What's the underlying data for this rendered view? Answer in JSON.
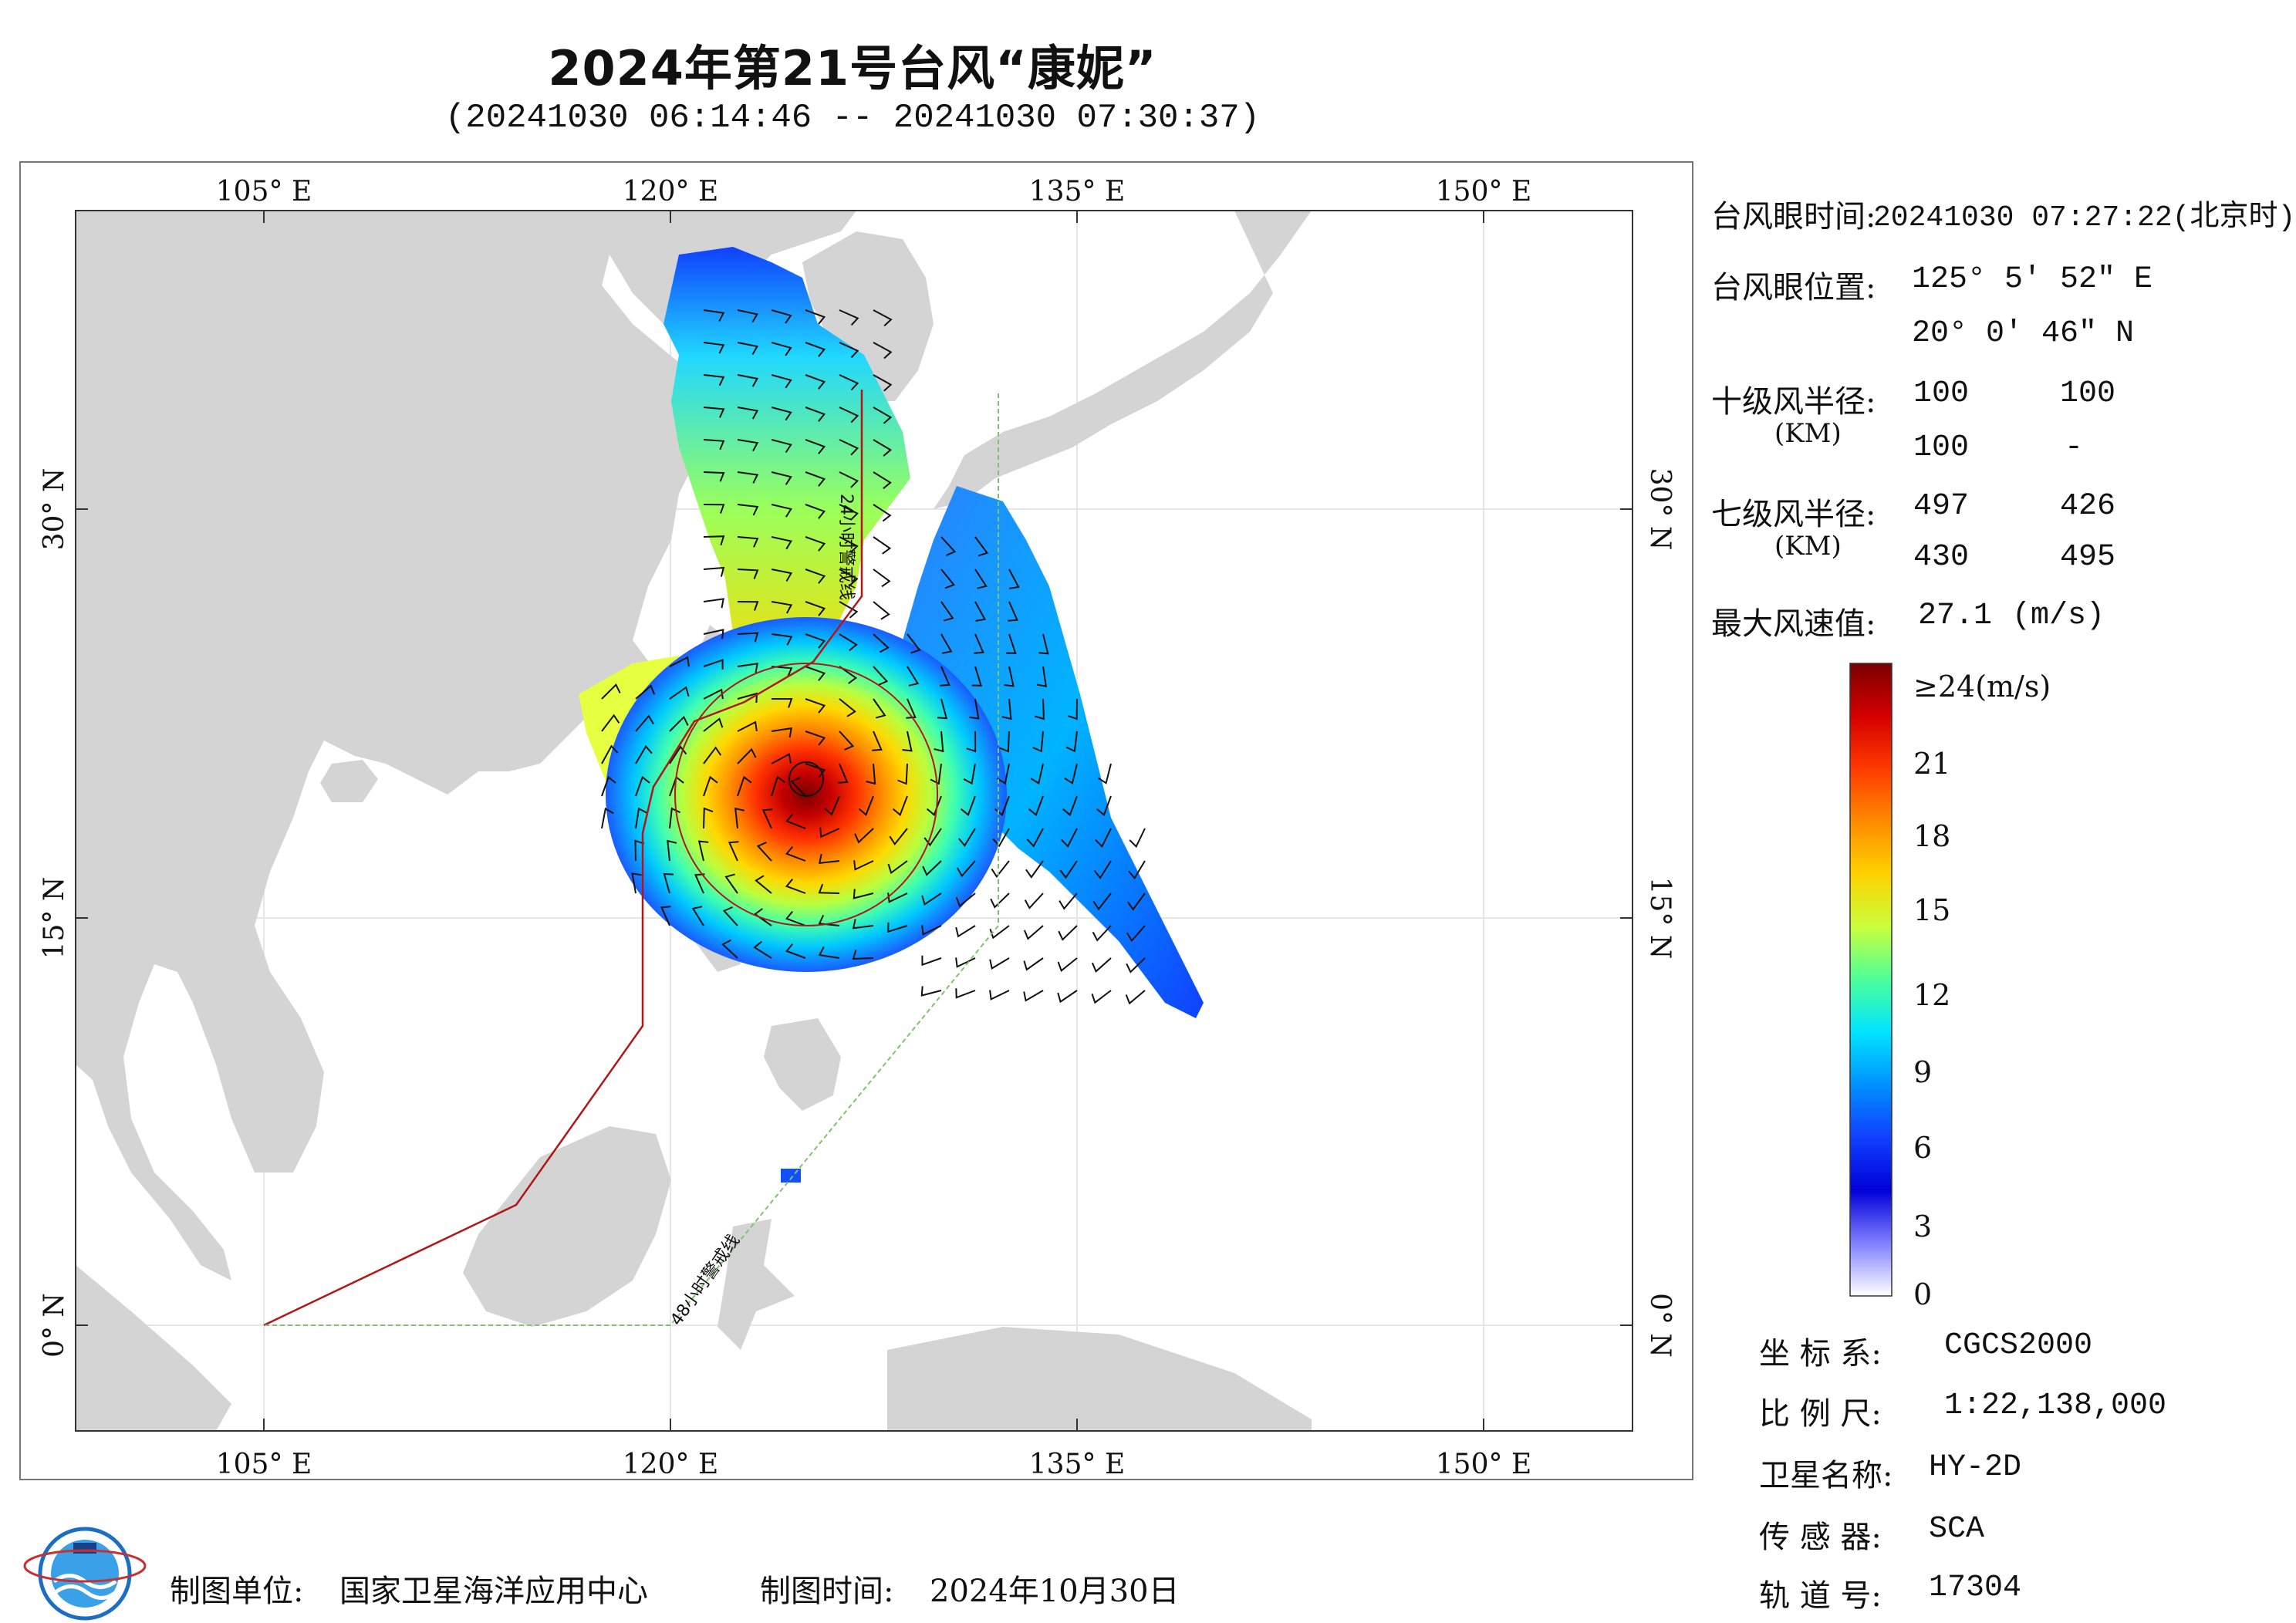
{
  "title": "2024年第21号台风“康妮”",
  "subtitle": "(20241030 06:14:46 -- 20241030 07:30:37)",
  "map": {
    "top_lon_labels": [
      "105° E",
      "120° E",
      "135° E",
      "150° E"
    ],
    "bottom_lon_labels": [
      "105° E",
      "120° E",
      "135° E",
      "150° E"
    ],
    "lat_labels": [
      "30° N",
      "15° N",
      "0° N"
    ],
    "line_24h_label": "24小时警戒线",
    "line_48h_label": "48小时警戒线",
    "land_color": "#d4d4d4",
    "sea_color": "#ffffff",
    "warning_24h_color": "#b01818",
    "warning_48h_color": "#7ec46a"
  },
  "info": {
    "eye_time_label": "台风眼时间:",
    "eye_time_value": "20241030 07:27:22(北京时)",
    "eye_pos_label": "台风眼位置:",
    "eye_lon": "125° 5′ 52″ E",
    "eye_lat": "20° 0′ 46″ N",
    "r10_label": "十级风半径:",
    "r10_unit": "(KM)",
    "r10_values": [
      "100",
      "100",
      "100",
      "-"
    ],
    "r7_label": "七级风半径:",
    "r7_unit": "(KM)",
    "r7_values": [
      "497",
      "426",
      "430",
      "495"
    ],
    "max_wind_label": "最大风速值:",
    "max_wind_value": "27.1",
    "max_wind_unit": "(m/s)"
  },
  "colorbar": {
    "labels": [
      "≥24(m/s)",
      "21",
      "18",
      "15",
      "12",
      "9",
      "6",
      "3",
      "0"
    ],
    "stops": [
      "#7a0000",
      "#d40000",
      "#ff3a00",
      "#ff8a00",
      "#ffd200",
      "#c8ff3c",
      "#4cff9a",
      "#00e4ff",
      "#0090ff",
      "#1040ff",
      "#0000d8",
      "#8080ff",
      "#ffffff"
    ]
  },
  "meta": {
    "coord_label": "坐 标 系:",
    "coord_value": "CGCS2000",
    "scale_label": "比 例 尺:",
    "scale_value": "1:22,138,000",
    "sat_label": "卫星名称:",
    "sat_value": "HY-2D",
    "sensor_label": "传 感 器:",
    "sensor_value": "SCA",
    "orbit_label": "轨 道 号:",
    "orbit_value": "17304"
  },
  "footer": {
    "maker_label": "制图单位:",
    "maker_value": "国家卫星海洋应用中心",
    "date_label": "制图时间:",
    "date_value": "2024年10月30日"
  }
}
